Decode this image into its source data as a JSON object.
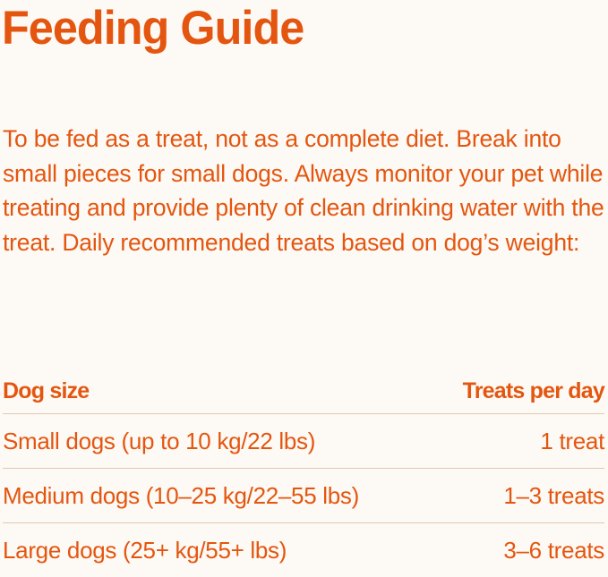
{
  "title": "Feeding Guide",
  "intro": "To be fed as a treat, not as a complete diet. Break into small pieces for small dogs. Always monitor your pet while treating and provide plenty of clean drinking water with the treat. Daily recommended treats based on dog’s weight:",
  "colors": {
    "accent": "#e4560f",
    "background": "#fdf9f5",
    "divider": "#e2c9b4"
  },
  "table": {
    "headers": [
      "Dog size",
      "Treats per day"
    ],
    "rows": [
      [
        "Small dogs (up to 10 kg/22 lbs)",
        "1 treat"
      ],
      [
        "Medium dogs (10–25 kg/22–55 lbs)",
        "1–3 treats"
      ],
      [
        "Large dogs (25+ kg/55+ lbs)",
        "3–6 treats"
      ]
    ]
  }
}
